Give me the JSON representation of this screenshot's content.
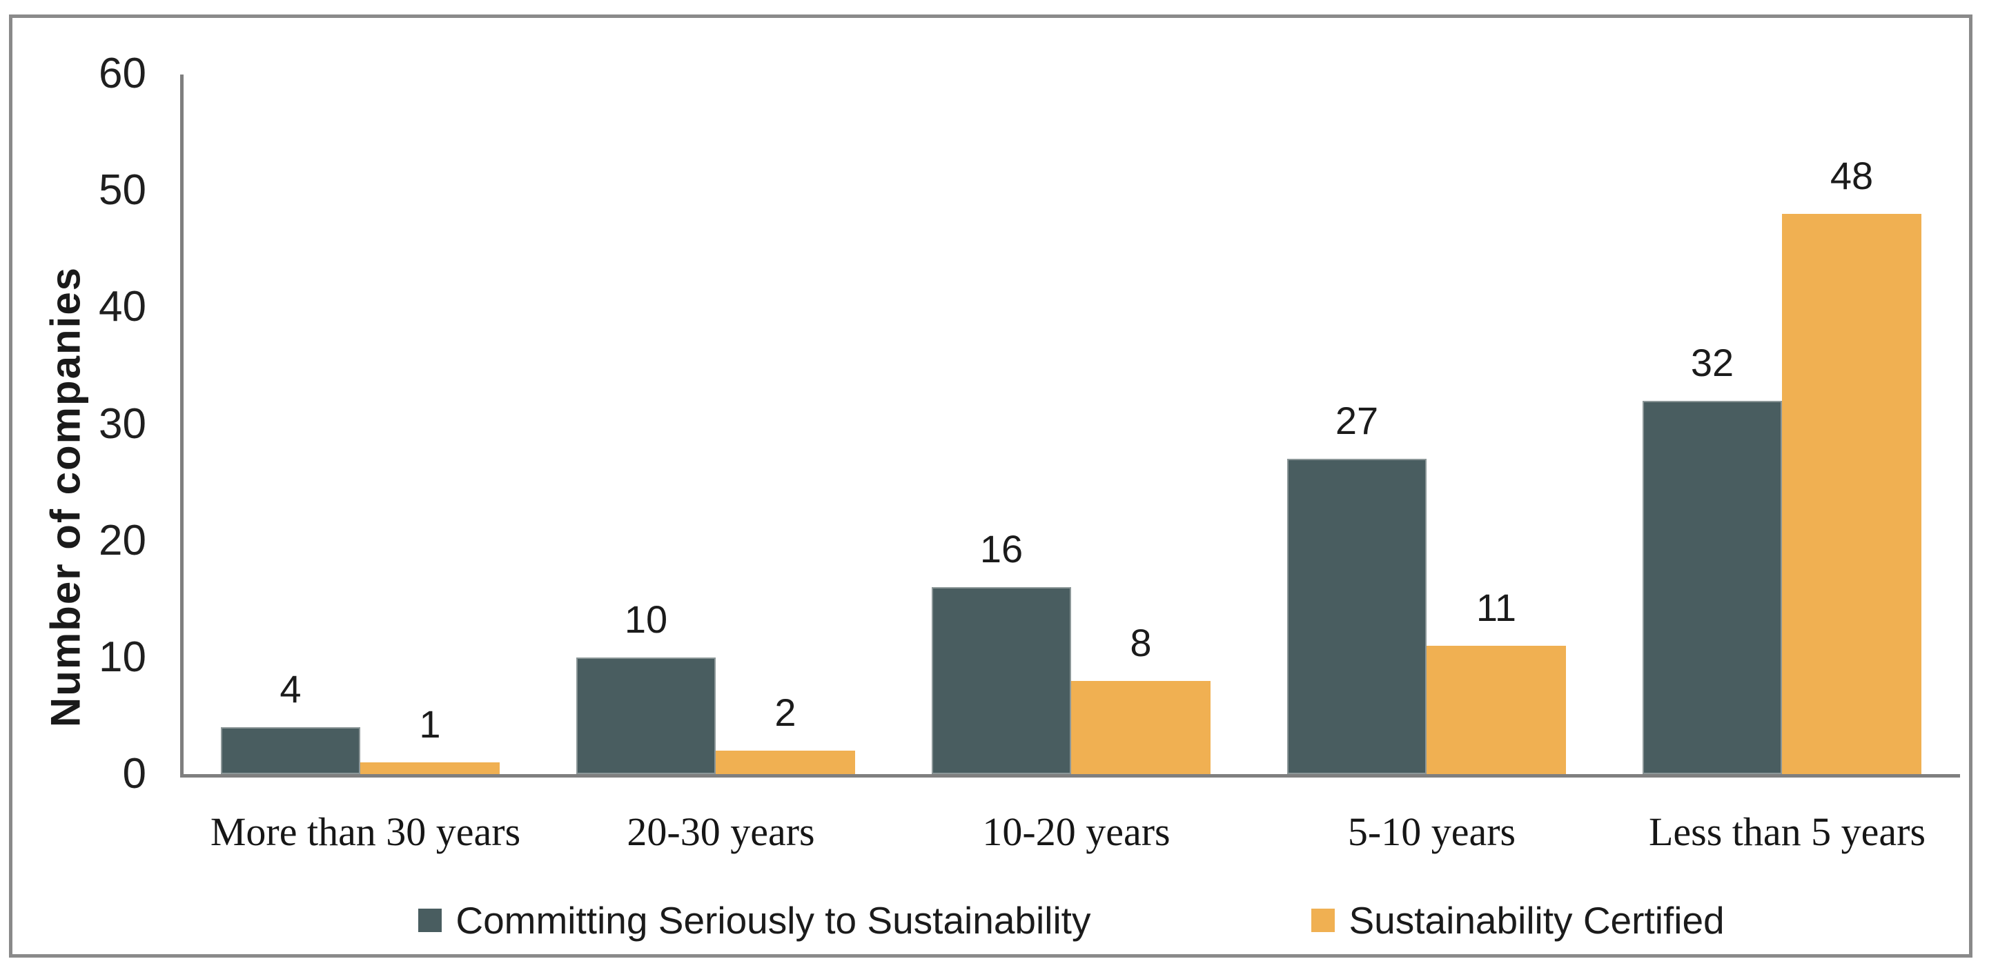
{
  "chart_data": {
    "type": "bar",
    "title": "",
    "categories": [
      "More than 30 years",
      "20-30 years",
      "10-20 years",
      "5-10 years",
      "Less than 5 years"
    ],
    "series": [
      {
        "name": "Committing Seriously to Sustainability",
        "color": "#495d60",
        "values": [
          4,
          10,
          16,
          27,
          32
        ]
      },
      {
        "name": "Sustainability Certified",
        "color": "#f0b052",
        "values": [
          1,
          2,
          8,
          11,
          48
        ]
      }
    ],
    "xlabel": "",
    "ylabel": "Number of companies",
    "ylim": [
      0,
      60
    ],
    "yticks": [
      0,
      10,
      20,
      30,
      40,
      50,
      60
    ],
    "grid": false,
    "legend_position": "bottom",
    "data_labels_shown": true
  },
  "styles": {
    "axis_color": "#7f7f7f",
    "frame_border_color": "#8a8a8a",
    "text_color": "#1b1b1b",
    "dark_bar_edge_color": "#8c9798"
  }
}
